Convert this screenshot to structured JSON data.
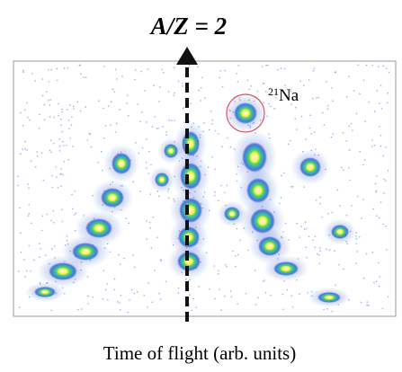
{
  "figure": {
    "title": "A/Z = 2",
    "label": {
      "mass": "21",
      "element": "Na"
    },
    "x_axis_label": "Time of flight (arb. units)"
  }
}
